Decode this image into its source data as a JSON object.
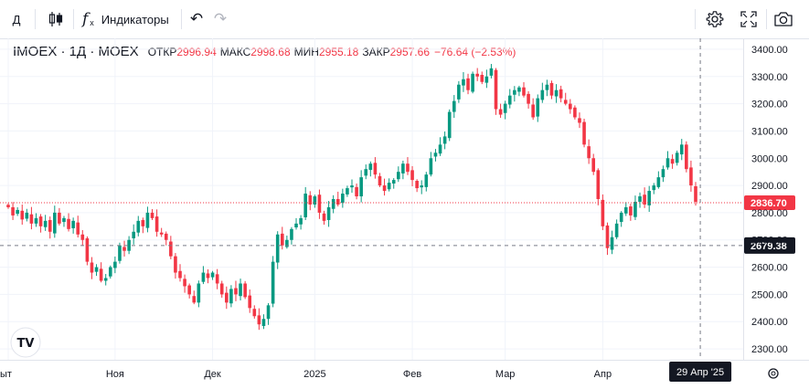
{
  "toolbar": {
    "interval_label": "Д",
    "indicators_label": "Индикаторы",
    "fx_symbol": "f",
    "undo_glyph": "↶",
    "redo_glyph": "↷"
  },
  "legend": {
    "symbol": "IMOEX · 1Д · MOEX",
    "open_key": "ОТКР",
    "open_val": "2996.94",
    "high_key": "МАКС",
    "high_val": "2998.68",
    "low_key": "МИН",
    "low_val": "2955.18",
    "close_key": "ЗАКР",
    "close_val": "2957.66",
    "change": "−76.64 (−2.53%)"
  },
  "colors": {
    "up": "#089981",
    "down": "#f23645",
    "axis_text": "#131722",
    "grid": "#f0f3fa"
  },
  "chart_data": {
    "type": "candlestick",
    "y_ticks": [
      "2300.00",
      "2400.00",
      "2500.00",
      "2600.00",
      "2700.00",
      "2800.00",
      "2900.00",
      "3000.00",
      "3100.00",
      "3200.00",
      "3300.00",
      "3400.00"
    ],
    "ylim": [
      2260,
      3440
    ],
    "x_ticks": [
      "ыт",
      "Ноя",
      "Дек",
      "2025",
      "Фев",
      "Мар",
      "Апр"
    ],
    "x_tick_index": [
      0,
      23,
      44,
      66,
      87,
      107,
      128
    ],
    "crosshair_label": "29 Апр '25",
    "crosshair_index": 149,
    "crosshair_price_label": "2679.38",
    "crosshair_price": 2679.38,
    "last_price_label": "2836.70",
    "last_price": 2836.7,
    "closes": [
      2820,
      2790,
      2810,
      2775,
      2800,
      2760,
      2780,
      2750,
      2770,
      2730,
      2800,
      2760,
      2780,
      2740,
      2770,
      2720,
      2700,
      2620,
      2580,
      2600,
      2550,
      2560,
      2600,
      2620,
      2680,
      2660,
      2700,
      2730,
      2770,
      2750,
      2800,
      2780,
      2730,
      2720,
      2700,
      2640,
      2580,
      2560,
      2530,
      2500,
      2470,
      2540,
      2580,
      2560,
      2580,
      2540,
      2500,
      2470,
      2520,
      2500,
      2540,
      2490,
      2450,
      2420,
      2390,
      2410,
      2460,
      2620,
      2720,
      2680,
      2700,
      2740,
      2760,
      2780,
      2870,
      2830,
      2860,
      2800,
      2770,
      2820,
      2850,
      2830,
      2870,
      2890,
      2900,
      2860,
      2930,
      2960,
      2980,
      2940,
      2900,
      2880,
      2910,
      2920,
      2950,
      2980,
      2950,
      2920,
      2890,
      2900,
      2940,
      3000,
      3020,
      3050,
      3080,
      3170,
      3210,
      3270,
      3290,
      3250,
      3310,
      3300,
      3280,
      3300,
      3330,
      3180,
      3160,
      3200,
      3230,
      3250,
      3260,
      3230,
      3200,
      3150,
      3220,
      3250,
      3270,
      3230,
      3250,
      3220,
      3200,
      3180,
      3150,
      3130,
      3050,
      3000,
      2950,
      2850,
      2750,
      2670,
      2710,
      2760,
      2800,
      2820,
      2790,
      2840,
      2860,
      2830,
      2880,
      2900,
      2930,
      2960,
      3000,
      2980,
      3020,
      3050,
      2960,
      2900,
      2840
    ]
  }
}
